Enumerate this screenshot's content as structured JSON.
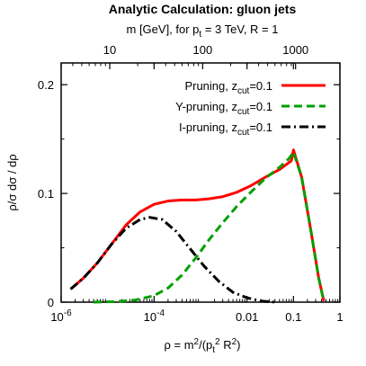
{
  "chart_data": {
    "type": "line",
    "title": "Analytic Calculation: gluon jets",
    "top_axis": {
      "label_prefix": "m [GeV], for p",
      "label_sub": "t",
      "label_suffix": " = 3 TeV, R = 1",
      "ticks": [
        {
          "label": "10",
          "value": 10
        },
        {
          "label": "100",
          "value": 100
        },
        {
          "label": "1000",
          "value": 1000
        }
      ]
    },
    "x_axis": {
      "scale": "log",
      "range": [
        1e-06,
        1
      ],
      "label_prefix": "ρ = m",
      "label_sup1": "2",
      "label_mid": "/(p",
      "label_sub": "t",
      "label_sup2": "2",
      "label_suffix": " R",
      "label_sup3": "2",
      "label_end": ")",
      "ticks": [
        {
          "value": 1e-06,
          "base": "10",
          "exp": "-6"
        },
        {
          "value": 0.0001,
          "base": "10",
          "exp": "-4"
        },
        {
          "value": 0.01,
          "label": "0.01"
        },
        {
          "value": 0.1,
          "label": "0.1"
        },
        {
          "value": 1,
          "label": "1"
        }
      ]
    },
    "y_axis": {
      "label": "ρ/σ dσ / dρ",
      "range": [
        0,
        0.22
      ],
      "ticks": [
        {
          "value": 0,
          "label": "0"
        },
        {
          "value": 0.1,
          "label": "0.1"
        },
        {
          "value": 0.2,
          "label": "0.2"
        }
      ]
    },
    "legend": {
      "position": "top-right"
    },
    "series": [
      {
        "name_prefix": "Pruning, z",
        "name_sub": "cut",
        "name_suffix": "=0.1",
        "color": "#ff0000",
        "dash": "solid",
        "points": [
          [
            1.6e-06,
            0.012
          ],
          [
            3e-06,
            0.022
          ],
          [
            6e-06,
            0.036
          ],
          [
            1.2e-05,
            0.053
          ],
          [
            2.5e-05,
            0.071
          ],
          [
            5e-05,
            0.083
          ],
          [
            0.0001,
            0.09
          ],
          [
            0.0002,
            0.093
          ],
          [
            0.0004,
            0.094
          ],
          [
            0.0008,
            0.094
          ],
          [
            0.0015,
            0.095
          ],
          [
            0.003,
            0.097
          ],
          [
            0.006,
            0.101
          ],
          [
            0.012,
            0.107
          ],
          [
            0.025,
            0.115
          ],
          [
            0.05,
            0.122
          ],
          [
            0.09,
            0.13
          ],
          [
            0.1,
            0.14
          ],
          [
            0.15,
            0.115
          ],
          [
            0.25,
            0.06
          ],
          [
            0.35,
            0.022
          ],
          [
            0.45,
            0.001
          ]
        ]
      },
      {
        "name_prefix": "Y-pruning, z",
        "name_sub": "cut",
        "name_suffix": "=0.1",
        "color": "#00a000",
        "dash": "dashed",
        "points": [
          [
            5e-06,
            0.0
          ],
          [
            1.5e-05,
            0.0005
          ],
          [
            4e-05,
            0.002
          ],
          [
            0.0001,
            0.006
          ],
          [
            0.0002,
            0.013
          ],
          [
            0.0004,
            0.025
          ],
          [
            0.0008,
            0.041
          ],
          [
            0.0015,
            0.057
          ],
          [
            0.003,
            0.073
          ],
          [
            0.006,
            0.088
          ],
          [
            0.012,
            0.101
          ],
          [
            0.025,
            0.114
          ],
          [
            0.05,
            0.124
          ],
          [
            0.08,
            0.132
          ],
          [
            0.1,
            0.138
          ],
          [
            0.15,
            0.115
          ],
          [
            0.25,
            0.06
          ],
          [
            0.35,
            0.022
          ],
          [
            0.45,
            0.001
          ]
        ]
      },
      {
        "name_prefix": "I-pruning, z",
        "name_sub": "cut",
        "name_suffix": "=0.1",
        "color": "#000000",
        "dash": "dashdot",
        "points": [
          [
            1.6e-06,
            0.012
          ],
          [
            3e-06,
            0.022
          ],
          [
            6e-06,
            0.036
          ],
          [
            1.2e-05,
            0.053
          ],
          [
            2.5e-05,
            0.068
          ],
          [
            5e-05,
            0.076
          ],
          [
            8e-05,
            0.078
          ],
          [
            0.00015,
            0.076
          ],
          [
            0.0003,
            0.065
          ],
          [
            0.0006,
            0.049
          ],
          [
            0.0012,
            0.033
          ],
          [
            0.0025,
            0.019
          ],
          [
            0.005,
            0.009
          ],
          [
            0.01,
            0.004
          ],
          [
            0.02,
            0.001
          ],
          [
            0.04,
            0.0
          ]
        ]
      }
    ]
  }
}
